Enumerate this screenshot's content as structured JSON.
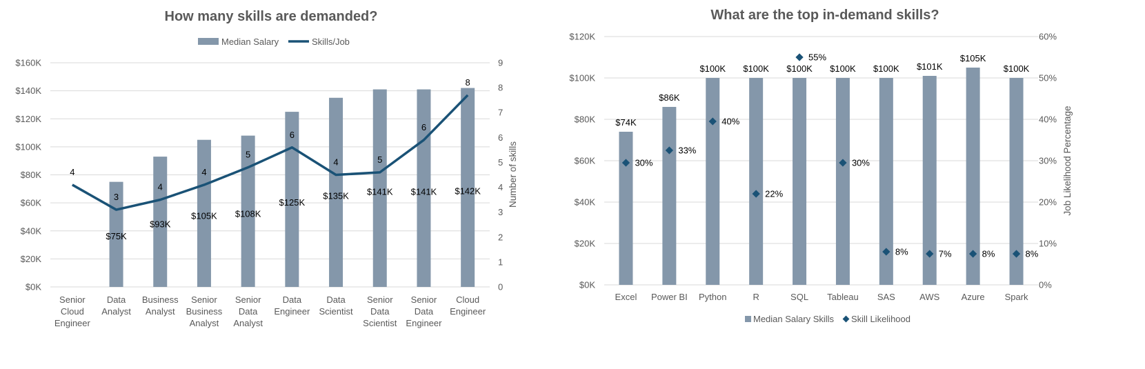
{
  "colors": {
    "bar": "#8497aa",
    "line": "#1a5276",
    "marker": "#1a5276",
    "grid": "#d9d9d9",
    "text": "#595959"
  },
  "chart_data": [
    {
      "type": "bar",
      "title": "How many skills are demanded?",
      "categories": [
        [
          "Senior",
          "Cloud",
          "Engineer"
        ],
        [
          "Data",
          "Analyst"
        ],
        [
          "Business",
          "Analyst"
        ],
        [
          "Senior",
          "Business",
          "Analyst"
        ],
        [
          "Senior",
          "Data",
          "Analyst"
        ],
        [
          "Data",
          "Engineer"
        ],
        [
          "Data",
          "Scientist"
        ],
        [
          "Senior",
          "Data",
          "Scientist"
        ],
        [
          "Senior",
          "Data",
          "Engineer"
        ],
        [
          "Cloud",
          "Engineer"
        ]
      ],
      "series": [
        {
          "name": "Median Salary",
          "type": "bar",
          "axis": "left",
          "values": [
            null,
            75000,
            93000,
            105000,
            108000,
            125000,
            135000,
            141000,
            141000,
            142000
          ],
          "labels": [
            "",
            "$75K",
            "$93K",
            "$105K",
            "$108K",
            "$125K",
            "$135K",
            "$141K",
            "$141K",
            "$142K"
          ]
        },
        {
          "name": "Skills/Job",
          "type": "line",
          "axis": "right",
          "values": [
            4.1,
            3.1,
            3.5,
            4.1,
            4.8,
            5.6,
            4.5,
            4.6,
            5.9,
            7.7
          ],
          "labels": [
            "4",
            "3",
            "4",
            "4",
            "5",
            "6",
            "4",
            "5",
            "6",
            "8"
          ]
        }
      ],
      "ylim_left": [
        0,
        160000
      ],
      "yticks_left": [
        "$0K",
        "$20K",
        "$40K",
        "$60K",
        "$80K",
        "$100K",
        "$120K",
        "$140K",
        "$160K"
      ],
      "ylim_right": [
        0,
        9
      ],
      "yticks_right": [
        "0",
        "1",
        "2",
        "3",
        "4",
        "5",
        "6",
        "7",
        "8",
        "9"
      ],
      "ylabel_right": "Number of skills",
      "xlabel": "",
      "grid": true,
      "legend": "top-center"
    },
    {
      "type": "bar",
      "title": "What are the top in-demand skills?",
      "categories": [
        [
          "Excel"
        ],
        [
          "Power BI"
        ],
        [
          "Python"
        ],
        [
          "R"
        ],
        [
          "SQL"
        ],
        [
          "Tableau"
        ],
        [
          "SAS"
        ],
        [
          "AWS"
        ],
        [
          "Azure"
        ],
        [
          "Spark"
        ]
      ],
      "series": [
        {
          "name": "Median Salary Skills",
          "type": "bar",
          "axis": "left",
          "values": [
            74000,
            86000,
            100000,
            100000,
            100000,
            100000,
            100000,
            101000,
            105000,
            100000
          ],
          "labels": [
            "$74K",
            "$86K",
            "$100K",
            "$100K",
            "$100K",
            "$100K",
            "$100K",
            "$101K",
            "$105K",
            "$100K"
          ]
        },
        {
          "name": "Skill Likelihood",
          "type": "scatter",
          "axis": "right",
          "values": [
            0.295,
            0.325,
            0.395,
            0.22,
            0.55,
            0.295,
            0.08,
            0.075,
            0.075,
            0.075
          ],
          "labels": [
            "30%",
            "33%",
            "40%",
            "22%",
            "55%",
            "30%",
            "8%",
            "7%",
            "8%",
            "8%"
          ]
        }
      ],
      "ylim_left": [
        0,
        120000
      ],
      "yticks_left": [
        "$0K",
        "$20K",
        "$40K",
        "$60K",
        "$80K",
        "$100K",
        "$120K"
      ],
      "ylim_right": [
        0,
        0.6
      ],
      "yticks_right": [
        "0%",
        "10%",
        "20%",
        "30%",
        "40%",
        "50%",
        "60%"
      ],
      "ylabel_right": "Job Likelihood Percentage",
      "xlabel": "",
      "grid": true,
      "legend": "bottom-center"
    }
  ]
}
